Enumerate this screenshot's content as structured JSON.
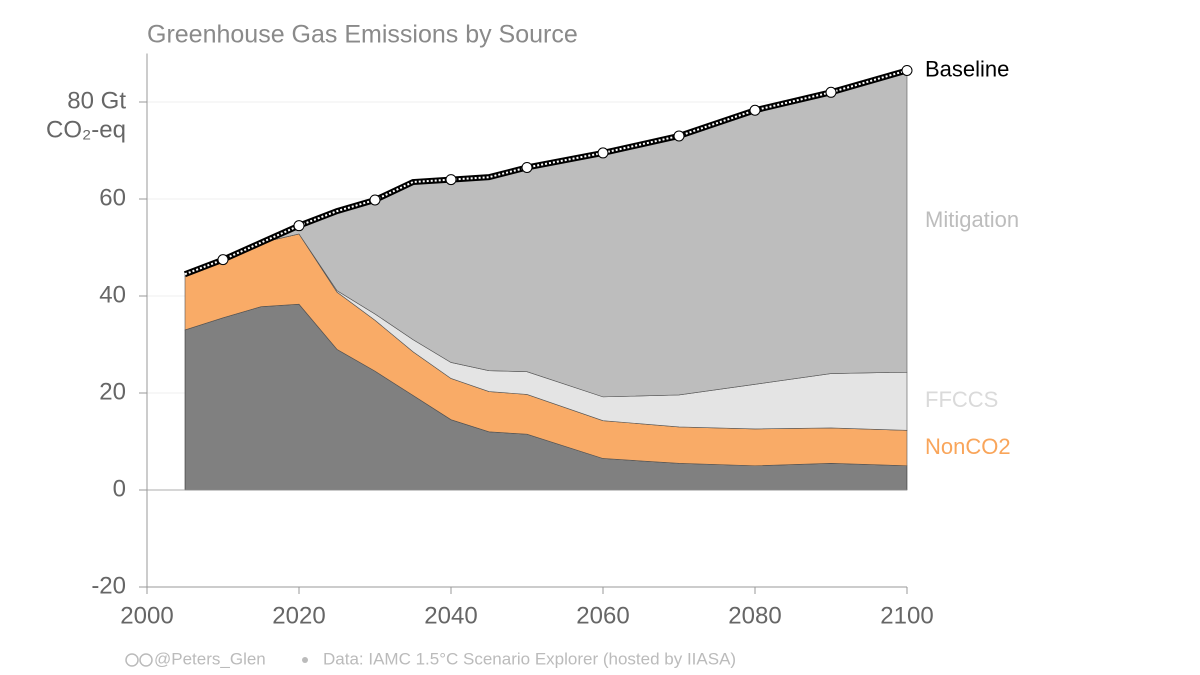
{
  "chart_data": {
    "type": "area",
    "title": "Greenhouse Gas Emissions by Source",
    "x": [
      2005,
      2010,
      2015,
      2020,
      2025,
      2030,
      2035,
      2040,
      2045,
      2050,
      2060,
      2070,
      2080,
      2090,
      2100
    ],
    "series": [
      {
        "color": "#808080",
        "values": [
          33,
          35.5,
          37.8,
          38.3,
          29,
          24.5,
          19.5,
          14.5,
          12,
          11.5,
          6.5,
          5.5,
          5,
          5.5,
          5
        ]
      },
      {
        "name": "NonCO2",
        "color": "#f9ab67",
        "values": [
          11,
          12,
          13.2,
          14.5,
          11.8,
          10.5,
          9,
          8.5,
          8.3,
          8.2,
          7.8,
          7.5,
          7.6,
          7.3,
          7.3
        ]
      },
      {
        "name": "FFCCS",
        "color": "#e4e4e4",
        "values": [
          0,
          0,
          0,
          0,
          0.3,
          1.3,
          2.5,
          3.3,
          4.3,
          4.7,
          4.9,
          6.6,
          9.2,
          11.2,
          12
        ]
      },
      {
        "name": "Mitigation",
        "color": "#bdbdbd",
        "values": [
          0.5,
          0,
          0,
          1.7,
          16.4,
          23.5,
          32.5,
          37.7,
          39.9,
          42.1,
          50.3,
          53.4,
          56.5,
          58,
          62.2
        ]
      },
      {
        "name": "Baseline",
        "color": "#000000",
        "style": "line",
        "values": [
          44.5,
          47.5,
          51,
          54.5,
          57.5,
          59.8,
          63.5,
          64,
          64.5,
          66.5,
          69.5,
          73,
          78.3,
          82,
          86.5
        ]
      }
    ],
    "xlim": [
      2000,
      2100
    ],
    "xticks": [
      2000,
      2020,
      2040,
      2060,
      2080,
      2100
    ],
    "ylim": [
      -20,
      90
    ],
    "yticks": [
      -20,
      0,
      20,
      40,
      60,
      {
        "value": 80,
        "label": "80 Gt"
      }
    ],
    "y_unit": "CO₂-eq",
    "grid": true,
    "credit": "@Peters_Glen",
    "source": "Data: IAMC 1.5°C Scenario Explorer (hosted by IIASA)"
  }
}
